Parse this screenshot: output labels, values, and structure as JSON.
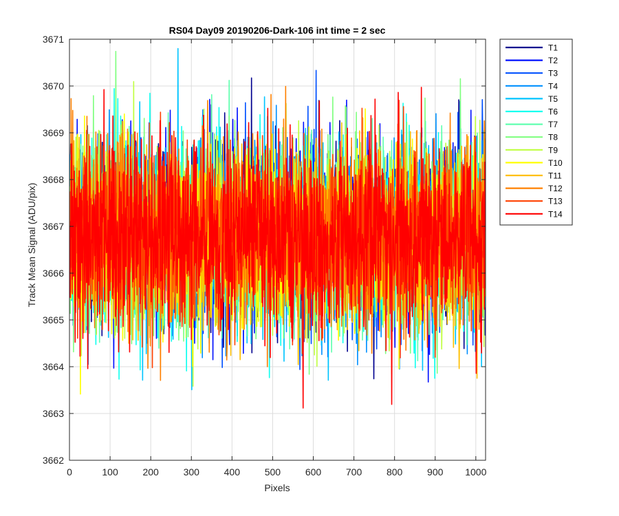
{
  "chart_data": {
    "type": "line",
    "title": "RS04 Day09 20190206-Dark-106 int time = 2 sec",
    "xlabel": "Pixels",
    "ylabel": "Track Mean Signal (ADU/pix)",
    "xlim": [
      0,
      1024
    ],
    "ylim": [
      3662,
      3671
    ],
    "xticks": [
      0,
      100,
      200,
      300,
      400,
      500,
      600,
      700,
      800,
      900,
      1000
    ],
    "yticks": [
      3662,
      3663,
      3664,
      3665,
      3666,
      3667,
      3668,
      3669,
      3670,
      3671
    ],
    "grid": true,
    "legend_location": "outside-top-right",
    "series_model": {
      "n_points": 1024,
      "x_start": 1,
      "x_step": 1,
      "center": 3666.8,
      "typical_range": [
        3664.5,
        3669.5
      ],
      "extreme_min": 3662.8,
      "extreme_max": 3670.8
    },
    "series": [
      {
        "name": "T1",
        "color": "#00008f"
      },
      {
        "name": "T2",
        "color": "#0010ff"
      },
      {
        "name": "T3",
        "color": "#0050ff"
      },
      {
        "name": "T4",
        "color": "#0090ff"
      },
      {
        "name": "T5",
        "color": "#00c4ff"
      },
      {
        "name": "T6",
        "color": "#10ffef"
      },
      {
        "name": "T7",
        "color": "#60ffaf"
      },
      {
        "name": "T8",
        "color": "#80ff80"
      },
      {
        "name": "T9",
        "color": "#bfff40"
      },
      {
        "name": "T10",
        "color": "#ffff00"
      },
      {
        "name": "T11",
        "color": "#ffbf00"
      },
      {
        "name": "T12",
        "color": "#ff8000"
      },
      {
        "name": "T13",
        "color": "#ff4000"
      },
      {
        "name": "T14",
        "color": "#ff0000"
      }
    ]
  }
}
